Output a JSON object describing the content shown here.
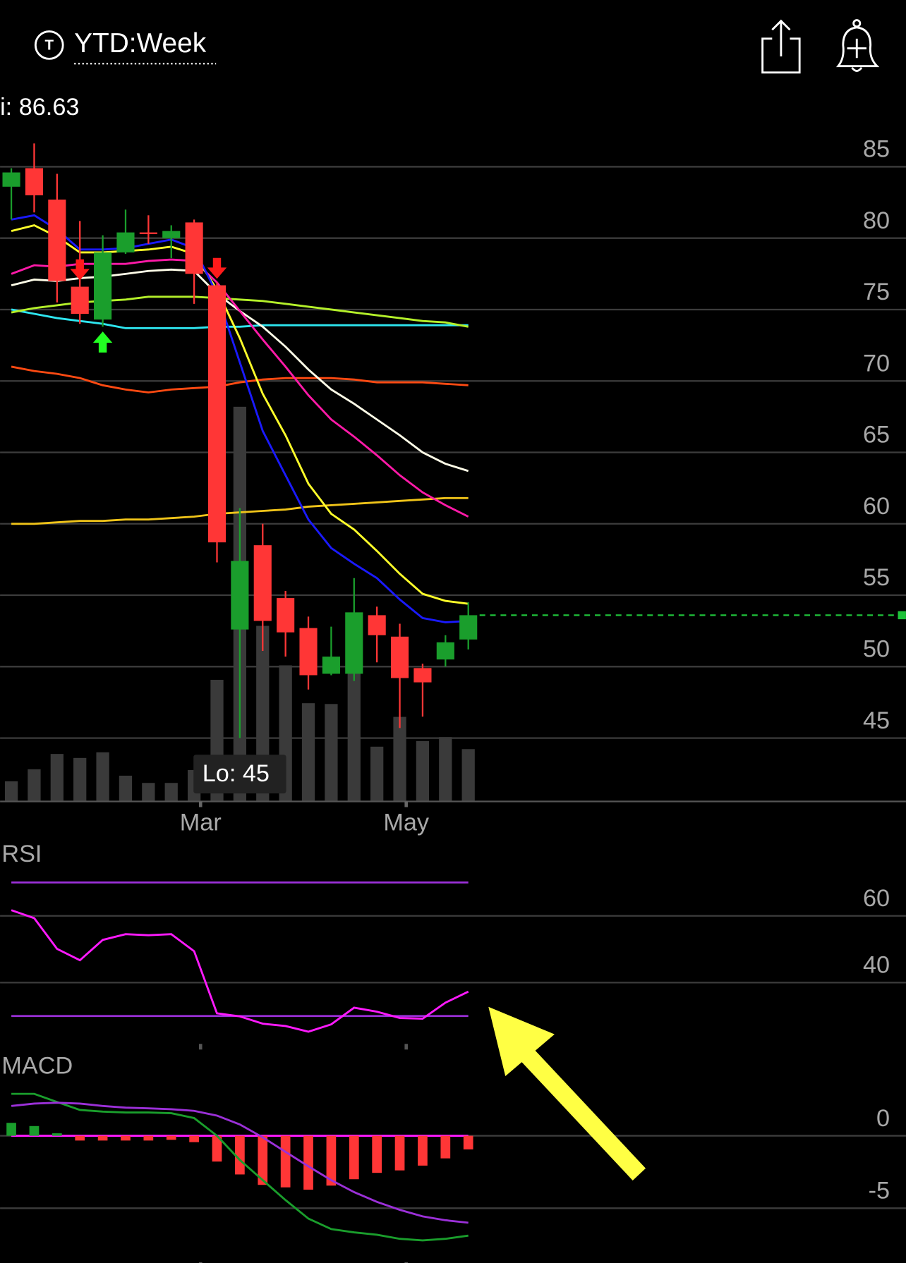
{
  "header": {
    "title": "YTD:Week"
  },
  "chart_data": [
    {
      "type": "candlestick",
      "high_label": "i: 86.63",
      "low_label": "Lo: 45",
      "categories": [
        null,
        null,
        null,
        null,
        null,
        null,
        null,
        null,
        "Mar",
        null,
        null,
        null,
        null,
        null,
        null,
        null,
        null,
        "May",
        null,
        null,
        null
      ],
      "open": [
        83.6,
        84.9,
        82.7,
        76.6,
        74.3,
        79.0,
        80.4,
        80.0,
        81.1,
        76.7,
        52.6,
        58.5,
        54.8,
        52.7,
        49.5,
        49.5,
        53.6,
        52.1,
        49.9,
        50.5,
        51.9
      ],
      "high": [
        84.9,
        86.63,
        84.5,
        81.2,
        80.2,
        82.0,
        81.6,
        80.9,
        81.3,
        76.9,
        61.1,
        60.0,
        55.3,
        53.5,
        52.8,
        56.2,
        54.2,
        53.0,
        50.2,
        52.2,
        54.5
      ],
      "low": [
        81.3,
        81.8,
        75.5,
        74.0,
        73.8,
        78.9,
        79.6,
        78.6,
        75.4,
        57.3,
        45,
        51.1,
        50.7,
        48.4,
        49.4,
        49.0,
        50.3,
        45.7,
        46.5,
        50.0,
        51.2
      ],
      "close": [
        84.6,
        83.0,
        77.0,
        74.7,
        79.0,
        80.4,
        80.3,
        80.5,
        77.5,
        58.7,
        57.4,
        53.2,
        52.4,
        49.4,
        50.7,
        53.8,
        52.2,
        49.2,
        48.9,
        51.7,
        53.6
      ],
      "up_color": "#1a9e2c",
      "down_color": "#ff3636",
      "volume": [
        25,
        40,
        59,
        54,
        61,
        32,
        23,
        23,
        39,
        151,
        490,
        218,
        169,
        122,
        121,
        160,
        68,
        105,
        75,
        80,
        65
      ],
      "volume_color": "#3a3a3a",
      "moving_averages": [
        {
          "color": "#ff4a12",
          "values": [
            71.0,
            70.7,
            70.5,
            70.2,
            69.7,
            69.4,
            69.2,
            69.4,
            69.5,
            69.6,
            69.9,
            70.1,
            70.2,
            70.2,
            70.2,
            70.1,
            69.9,
            69.9,
            69.9,
            69.8,
            69.7
          ]
        },
        {
          "color": "#f0c419",
          "values": [
            60.0,
            60.0,
            60.1,
            60.2,
            60.2,
            60.3,
            60.3,
            60.4,
            60.5,
            60.7,
            60.8,
            60.9,
            61.0,
            61.2,
            61.3,
            61.4,
            61.5,
            61.6,
            61.7,
            61.8,
            61.8
          ]
        },
        {
          "color": "#2ee6f0",
          "values": [
            75.0,
            74.7,
            74.4,
            74.2,
            74.0,
            73.7,
            73.7,
            73.7,
            73.7,
            73.8,
            73.8,
            73.9,
            73.9,
            73.9,
            73.9,
            73.9,
            73.9,
            73.9,
            73.9,
            73.9,
            73.9
          ]
        },
        {
          "color": "#b4f02a",
          "values": [
            74.8,
            75.1,
            75.3,
            75.5,
            75.6,
            75.7,
            75.9,
            75.9,
            75.9,
            75.8,
            75.7,
            75.6,
            75.4,
            75.2,
            75.0,
            74.8,
            74.6,
            74.4,
            74.2,
            74.1,
            73.8
          ]
        },
        {
          "color": "#fffde8",
          "values": [
            76.7,
            77.1,
            77.0,
            77.2,
            77.3,
            77.5,
            77.7,
            77.8,
            77.7,
            76.1,
            74.9,
            73.8,
            72.4,
            70.8,
            69.4,
            68.4,
            67.3,
            66.2,
            65.0,
            64.2,
            63.7
          ]
        },
        {
          "color": "#ff1aa8",
          "values": [
            77.5,
            78.1,
            78.0,
            78.2,
            78.2,
            78.2,
            78.4,
            78.5,
            78.4,
            76.9,
            74.9,
            72.9,
            71.0,
            69.0,
            67.3,
            66.1,
            64.8,
            63.4,
            62.2,
            61.3,
            60.5
          ]
        },
        {
          "color": "#ffff2a",
          "values": [
            80.5,
            80.9,
            80.1,
            79.0,
            79.0,
            79.1,
            79.2,
            79.4,
            78.9,
            76.4,
            73.0,
            69.1,
            66.2,
            62.8,
            60.7,
            59.6,
            58.1,
            56.5,
            55.1,
            54.6,
            54.4
          ]
        },
        {
          "color": "#1a1aff",
          "values": [
            81.3,
            81.6,
            80.6,
            79.2,
            79.2,
            79.3,
            79.6,
            79.9,
            79.3,
            76.1,
            71.3,
            66.5,
            63.4,
            60.3,
            58.3,
            57.2,
            56.2,
            54.7,
            53.4,
            53.1,
            53.2
          ]
        }
      ],
      "sell_signals": [
        3,
        9
      ],
      "buy_signals": [
        4
      ],
      "sell_color": "#ff1a1a",
      "buy_color": "#22ff22",
      "last_price_color": "#1fc23a",
      "ylim": [
        40.56,
        87.65
      ],
      "yticks": [
        85,
        80,
        75,
        70,
        65,
        60,
        55,
        50,
        45
      ],
      "grid": true
    },
    {
      "type": "line",
      "title": "RSI",
      "series": [
        {
          "color": "#ff1aff",
          "values": [
            61.7,
            59.3,
            50.1,
            46.7,
            52.8,
            54.5,
            54.2,
            54.5,
            49.4,
            30.8,
            29.9,
            27.7,
            27.0,
            25.3,
            27.5,
            32.5,
            31.3,
            29.4,
            29.2,
            34.0,
            37.3
          ]
        }
      ],
      "levels": [
        70,
        30
      ],
      "level_color": "#9b30d8",
      "ylim": [
        21.4,
        82.2
      ],
      "yticks": [
        60,
        40
      ],
      "grid": true
    },
    {
      "type": "line",
      "title": "MACD",
      "series": [
        {
          "color": "#1a9e2c",
          "values": [
            2.89,
            2.89,
            2.33,
            1.78,
            1.67,
            1.61,
            1.61,
            1.56,
            1.22,
            0,
            -1.67,
            -3.06,
            -4.44,
            -5.72,
            -6.44,
            -6.67,
            -6.83,
            -7.11,
            -7.22,
            -7.11,
            -6.89
          ]
        },
        {
          "color": "#9b30d8",
          "values": [
            2.06,
            2.22,
            2.28,
            2.22,
            2.06,
            1.94,
            1.89,
            1.83,
            1.72,
            1.39,
            0.78,
            -0.11,
            -1.11,
            -2.11,
            -3.06,
            -3.89,
            -4.56,
            -5.11,
            -5.56,
            -5.83,
            -6.0
          ]
        }
      ],
      "histogram": {
        "values": [
          0.89,
          0.67,
          0.17,
          -0.33,
          -0.33,
          -0.33,
          -0.33,
          -0.28,
          -0.44,
          -1.78,
          -2.67,
          -3.39,
          -3.56,
          -3.72,
          -3.44,
          -3.0,
          -2.56,
          -2.39,
          -2.06,
          -1.56,
          -0.94
        ],
        "up_color": "#1a9e2c",
        "down_color": "#ff3636"
      },
      "zero_line_color": "#ff1aff",
      "ylim": [
        -8.78,
        5.56
      ],
      "yticks": [
        0,
        -5
      ],
      "grid": true
    }
  ]
}
